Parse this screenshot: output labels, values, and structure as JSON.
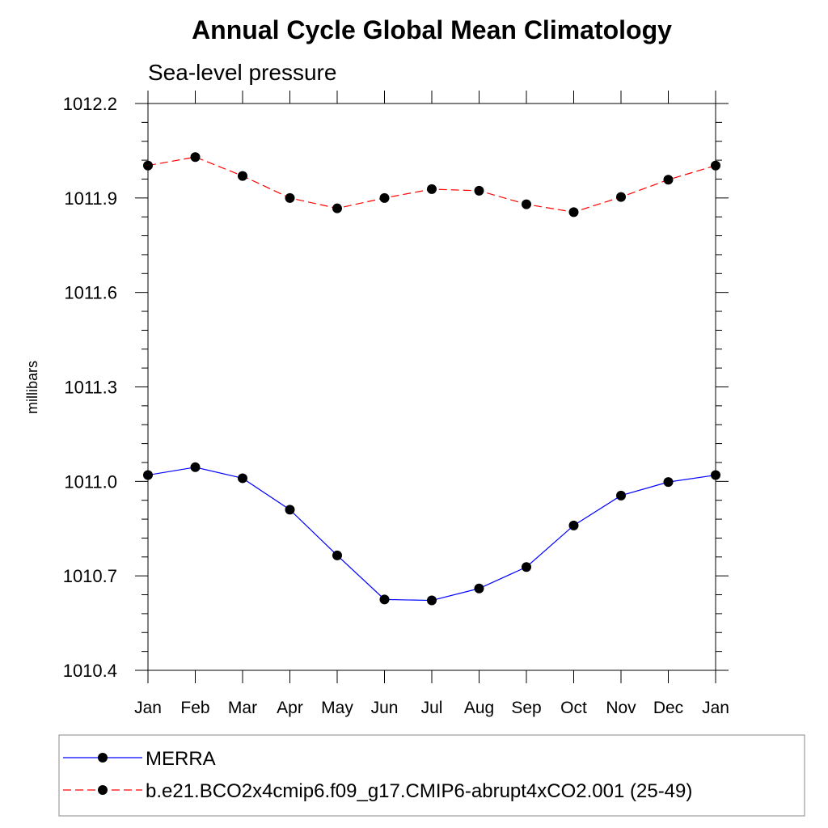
{
  "chart_data": {
    "type": "line",
    "title": "Annual Cycle Global Mean Climatology",
    "subtitle": "Sea-level pressure",
    "xlabel": "",
    "ylabel": "millibars",
    "categories": [
      "Jan",
      "Feb",
      "Mar",
      "Apr",
      "May",
      "Jun",
      "Jul",
      "Aug",
      "Sep",
      "Oct",
      "Nov",
      "Dec",
      "Jan"
    ],
    "ylim": [
      1010.4,
      1012.2
    ],
    "yticks": [
      "1010.4",
      "1010.7",
      "1011.0",
      "1011.3",
      "1011.6",
      "1011.9",
      "1012.2"
    ],
    "grid": false,
    "legend_position": "bottom",
    "series": [
      {
        "name": "MERRA",
        "color": "#0000ff",
        "line_style": "solid",
        "marker": "filled-circle",
        "values": [
          1011.02,
          1011.045,
          1011.01,
          1010.91,
          1010.765,
          1010.625,
          1010.622,
          1010.66,
          1010.728,
          1010.86,
          1010.955,
          1010.998,
          1011.02
        ]
      },
      {
        "name": "b.e21.BCO2x4cmip6.f09_g17.CMIP6-abrupt4xCO2.001 (25-49)",
        "color": "#ff0000",
        "line_style": "dashed",
        "marker": "filled-circle",
        "values": [
          1012.003,
          1012.03,
          1011.97,
          1011.9,
          1011.867,
          1011.9,
          1011.928,
          1011.923,
          1011.88,
          1011.855,
          1011.903,
          1011.958,
          1012.003
        ]
      }
    ]
  }
}
